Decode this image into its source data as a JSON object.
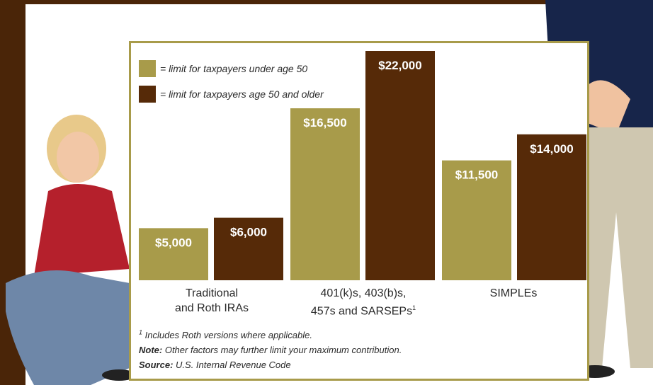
{
  "colors": {
    "under50": "#a89b4a",
    "over50": "#562a08",
    "frame": "#a89b4a",
    "bg_brown": "#4a2508"
  },
  "legend": {
    "under50": "= limit for taxpayers under age 50",
    "over50": "= limit for taxpayers age 50 and older"
  },
  "chart_data": {
    "type": "bar",
    "categories": [
      "Traditional and Roth IRAs",
      "401(k)s, 403(b)s, 457s and SARSEPs¹",
      "SIMPLEs"
    ],
    "series": [
      {
        "name": "= limit for taxpayers under age 50",
        "values": [
          5000,
          16500,
          11500
        ]
      },
      {
        "name": "= limit for taxpayers age 50 and older",
        "values": [
          6000,
          22000,
          14000
        ]
      }
    ],
    "value_labels": [
      [
        "$5,000",
        "$16,500",
        "$11,500"
      ],
      [
        "$6,000",
        "$22,000",
        "$14,000"
      ]
    ],
    "ylim": [
      0,
      22000
    ],
    "grid": false,
    "legend_position": "top-left"
  },
  "category_labels": [
    {
      "line1": "Traditional",
      "line2": "and Roth IRAs",
      "sup": ""
    },
    {
      "line1": "401(k)s, 403(b)s,",
      "line2": "457s and SARSEPs",
      "sup": "1"
    },
    {
      "line1": "SIMPLEs",
      "line2": "",
      "sup": ""
    }
  ],
  "notes": {
    "footnote_mark": "1",
    "footnote": " Includes Roth versions where applicable.",
    "note_label": "Note:",
    "note_text": " Other factors may further limit your maximum contribution.",
    "source_label": "Source:",
    "source_text": " U.S. Internal Revenue Code"
  }
}
